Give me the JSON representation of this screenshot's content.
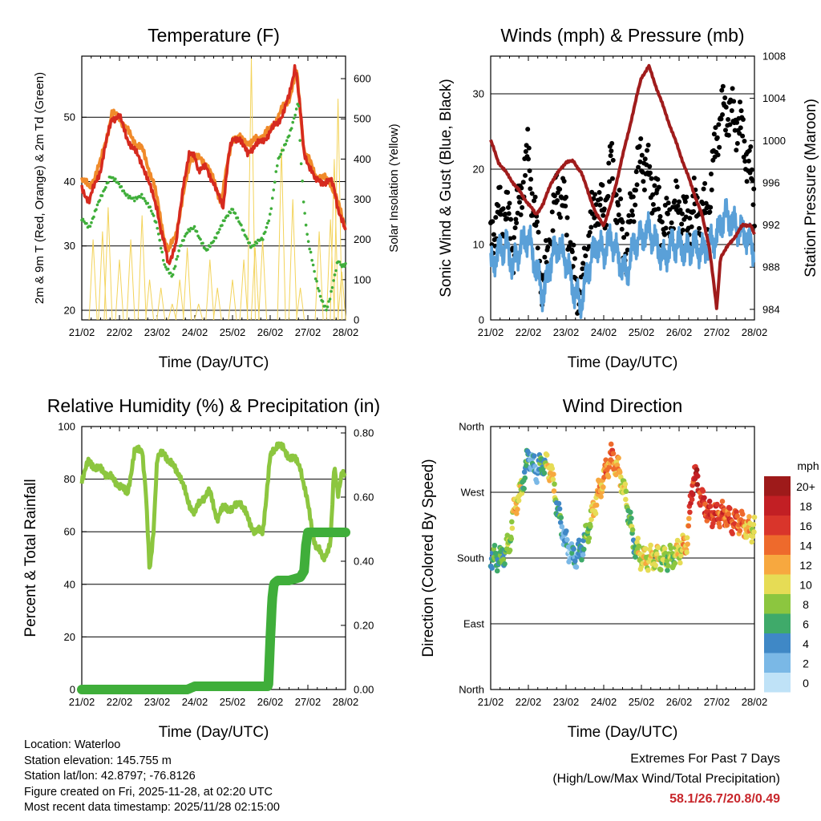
{
  "chart_data": [
    {
      "type": "line",
      "title": "Temperature (F)",
      "xlabel": "Time (Day/UTC)",
      "ylabel": "2m & 9m T (Red, Orange) & 2m Td (Green)",
      "y2label": "Solar Insolation (Yellow)",
      "x_ticks": [
        "21/02",
        "22/02",
        "23/02",
        "24/02",
        "25/02",
        "26/02",
        "27/02",
        "28/02"
      ],
      "ylim": [
        18.5,
        59.5
      ],
      "y_ticks": [
        20,
        30,
        40,
        50
      ],
      "y2lim": [
        0,
        656
      ],
      "y2_ticks": [
        0,
        100,
        200,
        300,
        400,
        500,
        600
      ],
      "grid": "horizontal at left ticks",
      "colors": {
        "t2m": "#d62a1f",
        "t9m": "#f08a2a",
        "td": "#3fae3a",
        "solar": "#f3d35a"
      },
      "series": [
        {
          "name": "2m T",
          "axis": "left",
          "x": [
            0,
            0.2,
            0.5,
            0.65,
            0.8,
            1.0,
            1.2,
            1.35,
            1.5,
            1.6,
            1.75,
            1.9,
            2.0,
            2.1,
            2.2,
            2.3,
            2.5,
            2.7,
            2.85,
            3.0,
            3.1,
            3.3,
            3.5,
            3.6,
            3.75,
            3.85,
            3.92,
            4.0,
            4.2,
            4.4,
            4.6,
            4.8,
            5.0,
            5.2,
            5.35,
            5.5,
            5.6,
            5.65,
            5.7,
            5.8,
            5.9,
            6.0,
            6.1,
            6.2,
            6.3,
            6.4,
            6.5,
            6.6,
            6.7,
            6.8,
            6.9,
            7.0
          ],
          "values": [
            39,
            37,
            42,
            46,
            50,
            50,
            47,
            45,
            44,
            43,
            40,
            38,
            36,
            32,
            30,
            27.5,
            30,
            40,
            44,
            44,
            42,
            42,
            40,
            38,
            36,
            42,
            45,
            46,
            47,
            44,
            46,
            46,
            48,
            49,
            51,
            53,
            56,
            58,
            57,
            51,
            44,
            43,
            42,
            40,
            40,
            40,
            40,
            40,
            39,
            36,
            34,
            32
          ]
        },
        {
          "name": "9m T",
          "axis": "left",
          "x": [
            0,
            0.2,
            0.5,
            0.8,
            1.0,
            1.3,
            1.6,
            1.9,
            2.2,
            2.3,
            2.5,
            2.9,
            3.3,
            3.7,
            4.0,
            4.5,
            5.0,
            5.5,
            5.7,
            5.9,
            6.2,
            6.6,
            7.0
          ],
          "values": [
            40.5,
            39,
            43,
            50.5,
            50,
            47,
            45,
            40,
            31,
            29,
            32,
            44,
            43,
            37,
            47,
            46,
            48,
            53,
            57,
            45,
            41,
            40,
            33
          ]
        },
        {
          "name": "2m Td",
          "axis": "left",
          "x": [
            0,
            0.2,
            0.4,
            0.55,
            0.75,
            0.9,
            1.2,
            1.4,
            1.6,
            1.8,
            2.0,
            2.1,
            2.2,
            2.4,
            2.6,
            2.8,
            3.0,
            3.3,
            3.6,
            4.0,
            4.3,
            4.5,
            4.8,
            5.0,
            5.2,
            5.4,
            5.55,
            5.7,
            5.75,
            5.8,
            5.9,
            6.0,
            6.1,
            6.2,
            6.35,
            6.5,
            6.6,
            6.7,
            6.8,
            6.9,
            7.0
          ],
          "values": [
            34,
            33,
            36,
            38,
            41,
            40,
            38,
            37,
            38,
            36,
            33,
            30,
            27,
            25,
            30,
            32,
            33,
            29,
            32,
            36,
            32,
            30,
            31,
            35,
            43,
            46,
            48,
            51,
            53,
            45,
            36,
            31,
            28,
            25,
            22,
            20,
            22,
            25,
            28,
            27,
            27
          ]
        },
        {
          "name": "Solar Insolation",
          "axis": "right",
          "x": [
            0.3,
            0.55,
            0.7,
            1.0,
            1.3,
            1.6,
            1.8,
            2.1,
            2.4,
            2.6,
            2.8,
            3.1,
            3.4,
            3.6,
            4.0,
            4.3,
            4.5,
            4.6,
            4.8,
            5.3,
            5.6,
            5.8,
            6.3,
            6.6,
            6.7,
            6.8,
            6.9
          ],
          "values": [
            200,
            220,
            280,
            150,
            200,
            260,
            100,
            80,
            40,
            100,
            180,
            40,
            150,
            80,
            100,
            150,
            650,
            180,
            200,
            430,
            300,
            80,
            220,
            250,
            400,
            550,
            120
          ]
        }
      ]
    },
    {
      "type": "scatter",
      "title": "Winds (mph) & Pressure (mb)",
      "xlabel": "Time (Day/UTC)",
      "ylabel": "Sonic Wind & Gust (Blue, Black)",
      "y2label": "Station Pressure (Maroon)",
      "x_ticks": [
        "21/02",
        "22/02",
        "23/02",
        "24/02",
        "25/02",
        "26/02",
        "27/02",
        "28/02"
      ],
      "ylim": [
        0,
        35
      ],
      "y_ticks": [
        0,
        10,
        20,
        30
      ],
      "y2lim": [
        983,
        1008
      ],
      "y2_ticks": [
        984,
        988,
        992,
        996,
        1000,
        1004,
        1008
      ],
      "colors": {
        "wind": "#5aa0d8",
        "gust": "#000000",
        "pressure": "#a01c1c"
      },
      "series": [
        {
          "name": "Sonic Wind",
          "axis": "left",
          "x": [
            0,
            0.2,
            0.4,
            0.6,
            0.8,
            1.0,
            1.2,
            1.4,
            1.6,
            1.8,
            2.0,
            2.2,
            2.4,
            2.6,
            2.8,
            3.0,
            3.2,
            3.4,
            3.6,
            3.8,
            4.0,
            4.2,
            4.4,
            4.6,
            4.8,
            5.0,
            5.2,
            5.4,
            5.6,
            5.8,
            6.0,
            6.2,
            6.4,
            6.6,
            6.8,
            7.0
          ],
          "values": [
            7,
            9,
            10,
            7,
            10,
            11,
            7,
            3,
            8,
            10,
            8,
            4,
            2,
            7,
            10,
            9,
            11,
            8,
            6,
            10,
            11,
            12,
            10,
            8,
            10,
            10,
            9,
            10,
            9,
            10,
            11,
            14,
            13,
            12,
            11,
            9
          ]
        },
        {
          "name": "Gust",
          "axis": "left",
          "x": [
            0,
            0.2,
            0.4,
            0.6,
            0.8,
            1.0,
            1.2,
            1.4,
            1.6,
            1.8,
            2.0,
            2.2,
            2.4,
            2.6,
            2.8,
            3.0,
            3.2,
            3.4,
            3.6,
            3.8,
            4.0,
            4.2,
            4.4,
            4.6,
            4.8,
            5.0,
            5.2,
            5.4,
            5.6,
            5.8,
            6.0,
            6.2,
            6.4,
            6.6,
            6.8,
            7.0
          ],
          "values": [
            11,
            14,
            15,
            10,
            17,
            22,
            12,
            4,
            12,
            18,
            14,
            6,
            3,
            11,
            16,
            14,
            21,
            14,
            9,
            17,
            22,
            19,
            16,
            12,
            14,
            15,
            13,
            15,
            14,
            15,
            25,
            28,
            27,
            26,
            22,
            16
          ]
        },
        {
          "name": "Station Pressure",
          "axis": "right",
          "x": [
            0,
            0.2,
            0.4,
            0.6,
            0.8,
            1.0,
            1.2,
            1.4,
            1.6,
            1.8,
            2.0,
            2.2,
            2.4,
            2.6,
            2.8,
            3.0,
            3.2,
            3.4,
            3.6,
            3.8,
            4.0,
            4.2,
            4.4,
            4.6,
            4.8,
            5.0,
            5.2,
            5.4,
            5.6,
            5.8,
            5.9,
            6.0,
            6.1,
            6.3,
            6.5,
            6.7,
            6.9,
            7.0
          ],
          "values": [
            1000,
            998,
            997,
            996,
            995,
            994,
            993,
            994,
            996,
            997,
            998,
            998,
            997,
            995,
            993,
            992,
            994,
            997,
            1000,
            1003,
            1006,
            1007,
            1005,
            1003,
            1001,
            999,
            997,
            995,
            993,
            990,
            987,
            984,
            989,
            990,
            991,
            992,
            992,
            991
          ]
        }
      ]
    },
    {
      "type": "line",
      "title": "Relative Humidity (%) & Precipitation (in)",
      "xlabel": "Time (Day/UTC)",
      "ylabel": "Percent & Total Rainfall",
      "x_ticks": [
        "21/02",
        "22/02",
        "23/02",
        "24/02",
        "25/02",
        "26/02",
        "27/02",
        "28/02"
      ],
      "ylim": [
        0,
        100
      ],
      "y_ticks": [
        0,
        20,
        40,
        60,
        80,
        100
      ],
      "y2lim": [
        0,
        0.82
      ],
      "y2_ticks": [
        "0.00",
        "0.20",
        "0.40",
        "0.60",
        "0.80"
      ],
      "colors": {
        "rh": "#8cc63f",
        "precip": "#3fae3a"
      },
      "series": [
        {
          "name": "Relative Humidity",
          "axis": "left",
          "x": [
            0,
            0.2,
            0.4,
            0.6,
            0.8,
            1.0,
            1.2,
            1.4,
            1.6,
            1.7,
            1.8,
            1.9,
            2.0,
            2.2,
            2.4,
            2.6,
            2.8,
            3.0,
            3.2,
            3.4,
            3.6,
            3.8,
            4.0,
            4.2,
            4.4,
            4.6,
            4.8,
            5.0,
            5.2,
            5.4,
            5.6,
            5.8,
            6.0,
            6.2,
            6.4,
            6.6,
            6.7,
            6.8,
            6.9,
            7.0
          ],
          "values": [
            80,
            87,
            84,
            83,
            80,
            78,
            74,
            90,
            92,
            75,
            44,
            60,
            88,
            90,
            85,
            82,
            72,
            67,
            73,
            75,
            65,
            70,
            68,
            72,
            65,
            60,
            60,
            88,
            94,
            90,
            88,
            85,
            70,
            55,
            50,
            55,
            85,
            75,
            82,
            80
          ]
        },
        {
          "name": "Total Precipitation",
          "axis": "right",
          "x": [
            0,
            1.0,
            2.0,
            2.8,
            3.0,
            4.0,
            4.8,
            4.95,
            5.0,
            5.05,
            5.1,
            5.2,
            5.5,
            5.8,
            5.9,
            5.95,
            6.0,
            7.0
          ],
          "values": [
            0,
            0,
            0,
            0,
            0.01,
            0.01,
            0.01,
            0.01,
            0.15,
            0.28,
            0.33,
            0.34,
            0.34,
            0.35,
            0.37,
            0.45,
            0.49,
            0.49
          ]
        }
      ]
    },
    {
      "type": "scatter",
      "title": "Wind Direction",
      "xlabel": "Time (Day/UTC)",
      "ylabel": "Direction (Colored By Speed)",
      "x_ticks": [
        "21/02",
        "22/02",
        "23/02",
        "24/02",
        "25/02",
        "26/02",
        "27/02",
        "28/02"
      ],
      "ylim": [
        0,
        360
      ],
      "y_ticks": [
        "North",
        "East",
        "South",
        "West",
        "North"
      ],
      "colorbar_title": "mph",
      "colorbar_labels": [
        "20+",
        "18",
        "16",
        "14",
        "12",
        "10",
        "8",
        "6",
        "4",
        "2",
        "0"
      ],
      "colorbar_colors": [
        "#9e1a1a",
        "#c21f24",
        "#d9352b",
        "#ee6a2c",
        "#f7a83f",
        "#e6dc55",
        "#8cc63f",
        "#3faa6a",
        "#3f88c6",
        "#7ab8e6",
        "#bfe2f7"
      ],
      "series": [
        {
          "name": "Direction",
          "x": [
            0,
            0.3,
            0.5,
            0.6,
            0.7,
            0.8,
            1.0,
            1.2,
            1.4,
            1.6,
            1.8,
            2.0,
            2.2,
            2.4,
            2.6,
            2.8,
            3.0,
            3.2,
            3.4,
            3.6,
            3.8,
            4.0,
            4.2,
            4.4,
            4.6,
            4.8,
            5.0,
            5.2,
            5.4,
            5.6,
            5.8,
            6.0,
            6.2,
            6.4,
            6.6,
            6.8,
            7.0
          ],
          "values": [
            180,
            180,
            200,
            240,
            260,
            270,
            320,
            300,
            310,
            300,
            240,
            200,
            180,
            190,
            220,
            260,
            290,
            320,
            300,
            260,
            200,
            180,
            180,
            180,
            180,
            180,
            190,
            200,
            300,
            260,
            240,
            240,
            240,
            230,
            230,
            220,
            220
          ],
          "speeds": [
            6,
            6,
            8,
            10,
            12,
            8,
            4,
            3,
            6,
            12,
            5,
            3,
            3,
            4,
            8,
            12,
            12,
            14,
            12,
            8,
            6,
            10,
            10,
            10,
            8,
            8,
            10,
            12,
            18,
            16,
            16,
            16,
            14,
            16,
            14,
            12,
            10
          ]
        }
      ]
    }
  ],
  "info": {
    "location": "Location: Waterloo",
    "elevation": "Station elevation: 145.755 m",
    "latlon": "Station lat/lon: 42.8797; -76.8126",
    "created": "Figure created on Fri, 2025-11-28, at 02:20 UTC",
    "timestamp": "Most recent data timestamp: 2025/11/28 02:15:00"
  },
  "extremes": {
    "title": "Extremes For Past 7 Days",
    "subtitle": "(High/Low/Max Wind/Total Precipitation)",
    "values": "58.1/26.7/20.8/0.49"
  }
}
